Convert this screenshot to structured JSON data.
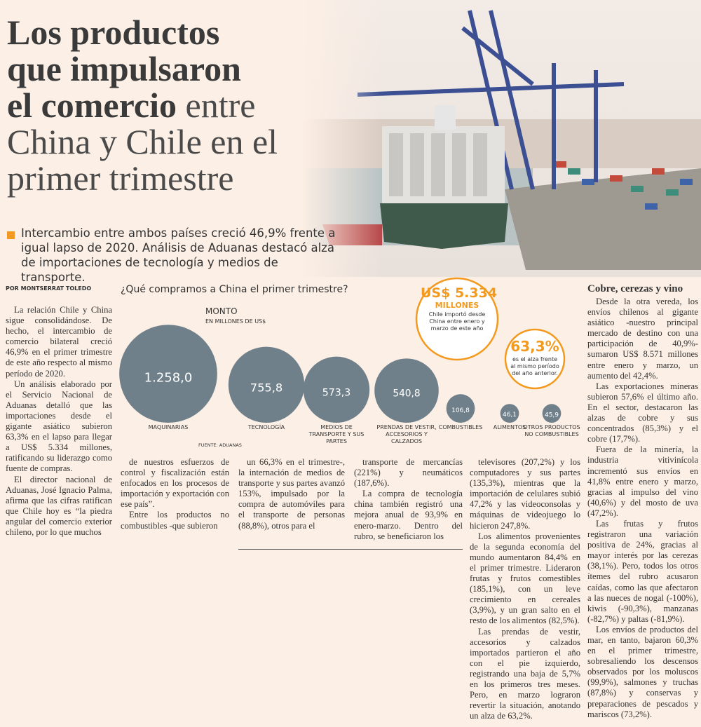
{
  "header": {
    "title_bold": [
      "Los productos",
      "que impulsaron",
      "el comercio"
    ],
    "title_light": [
      "entre",
      "China y Chile en el",
      "primer trimestre"
    ],
    "deck": "Intercambio entre ambos países creció 46,9% frente a igual lapso de 2020. Análisis de Aduanas destacó alza de importaciones de tecnología y medios de transporte."
  },
  "article": {
    "byline": "POR MONTSERRAT TOLEDO",
    "subheading": "Cobre, cerezas y vino",
    "columns": [
      [
        "La relación Chile y China sigue consolidándose. De hecho, el intercambio de comercio bilateral creció 46,9% en el primer trimestre de este año respecto al mismo período de 2020.",
        "Un análisis elaborado por el Servicio Nacional de Aduanas detalló que las importaciones desde el gigante asiático subieron 63,3% en el lapso para llegar a US$ 5.334 millones, ratificando su liderazgo como fuente de compras.",
        "El director nacional de Aduanas, José Ignacio Palma, afirma que las cifras ratifican que Chile hoy es “la piedra angular del comercio exterior chileno, por lo que muchos"
      ],
      [
        "de nuestros esfuerzos de control y fiscalización están enfocados en los procesos de importación y exportación con ese país”.",
        "Entre los productos no combustibles -que subieron"
      ],
      [
        "un 66,3% en el trimestre-, la internación de medios de transporte y sus partes avanzó 153%, impulsado por la compra de automóviles para el transporte de personas (88,8%), otros para el"
      ],
      [
        "transporte de mercancías (221%) y neumáticos (187,6%).",
        "La compra de tecnología china también registró una mejora anual de 93,9% en enero-marzo. Dentro del rubro, se beneficiaron los"
      ],
      [
        "televisores (207,2%) y los computadores y sus partes (135,3%), mientras que la importación de celulares subió 47,2% y las videoconsolas y máquinas de videojuego lo hicieron 247,8%.",
        "Los alimentos provenientes de la segunda economía del mundo aumentaron 84,4% en el primer trimestre. Lideraron frutas y frutos comestibles (185,1%), con un leve crecimiento en cereales (3,9%), y un gran salto en el resto de los alimentos (82,5%).",
        "Las prendas de vestir, accesorios y calzados importados partieron el año con el pie izquierdo, registrando una baja de 5,7% en los primeros tres meses. Pero, en marzo lograron revertir la situación, anotando un alza de 63,2%."
      ],
      [
        "Desde la otra vereda, los envíos chilenos al gigante asiático -nuestro principal mercado de destino con una participación de 40,9%- sumaron US$ 8.571 millones entre enero y marzo, un aumento del 42,4%.",
        "Las exportaciones mineras subieron 57,6% el último año. En el sector, destacaron las alzas de cobre y sus concentrados (85,3%) y el cobre (17,7%).",
        "Fuera de la minería, la industria vitivinícola incrementó sus envíos en 41,8% entre enero y marzo, gracias al impulso del vino (40,6%) y del mosto de uva (47,2%).",
        "Las frutas y frutos registraron una variación positiva de 24%, gracias al mayor interés por las cerezas (38,1%). Pero, todos los otros ítemes del rubro acusaron caídas, como las que afectaron a las nueces de nogal (-100%), kiwis (-90,3%), manzanas (-82,7%) y paltas (-81,9%).",
        "Los envíos de productos del mar, en tanto, bajaron 60,3% en el primer trimestre, sobresaliendo los descensos observados por los moluscos (99,9%), salmones y truchas (87,8%) y conservas y preparaciones de pescados y mariscos (73,2%)."
      ]
    ]
  },
  "chart_data": {
    "type": "bubble",
    "title": "¿Qué compramos a China el primer trimestre?",
    "value_label": "MONTO",
    "unit_label": "EN MILLONES DE US$",
    "source": "FUENTE: ADUANAS",
    "categories": [
      "MAQUINARIAS",
      "TECNOLOGÍA",
      "MEDIOS DE TRANSPORTE Y SUS PARTES",
      "PRENDAS DE VESTIR, ACCESORIOS Y CALZADOS",
      "COMBUSTIBLES",
      "ALIMENTOS",
      "OTROS PRODUCTOS NO COMBUSTIBLES"
    ],
    "values": [
      1258.0,
      755.8,
      573.3,
      540.8,
      106.8,
      46.1,
      45.9
    ],
    "value_labels": [
      "1.258,0",
      "755,8",
      "573,3",
      "540,8",
      "106,8",
      "46,1",
      "45,9"
    ],
    "color": "#6f808b",
    "callouts": [
      {
        "value": 5334,
        "value_label": "US$ 5.334",
        "unit": "MILLONES",
        "text": "Chile importó desde China entre enero y marzo de este año"
      },
      {
        "value": 63.3,
        "value_label": "63,3%",
        "text": "es el alza frente al mismo período del año anterior."
      }
    ]
  }
}
